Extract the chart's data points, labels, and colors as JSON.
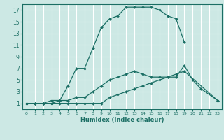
{
  "xlabel": "Humidex (Indice chaleur)",
  "bg_color": "#cce8e4",
  "grid_color": "#ffffff",
  "line_color": "#1a6e64",
  "xlim": [
    -0.5,
    23.5
  ],
  "ylim": [
    0,
    18
  ],
  "xticks": [
    0,
    1,
    2,
    3,
    4,
    5,
    6,
    7,
    8,
    9,
    10,
    11,
    12,
    13,
    14,
    15,
    16,
    17,
    18,
    19,
    20,
    21,
    22,
    23
  ],
  "yticks": [
    1,
    3,
    5,
    7,
    9,
    11,
    13,
    15,
    17
  ],
  "line1_x": [
    0,
    1,
    2,
    3,
    4,
    5,
    6,
    7,
    8,
    9,
    10,
    11,
    12,
    13,
    14,
    15,
    16,
    17,
    18,
    19
  ],
  "line1_y": [
    1,
    1,
    1,
    1.5,
    1.5,
    4,
    7,
    7,
    10.5,
    14,
    15.5,
    16,
    17.5,
    17.5,
    17.5,
    17.5,
    17,
    16,
    15.5,
    11.5
  ],
  "line2_x": [
    0,
    1,
    2,
    3,
    4,
    5,
    6,
    7,
    8,
    9,
    10,
    11,
    12,
    13,
    14,
    15,
    16,
    17,
    18,
    19,
    20,
    21,
    23
  ],
  "line2_y": [
    1,
    1,
    1,
    1,
    1.5,
    1.5,
    2,
    2,
    3,
    4,
    5,
    5.5,
    6,
    6.5,
    6,
    5.5,
    5.5,
    5.5,
    5.5,
    7.5,
    5,
    3.5,
    1.5
  ],
  "line3_x": [
    0,
    1,
    2,
    3,
    4,
    5,
    6,
    7,
    8,
    9,
    10,
    11,
    12,
    13,
    14,
    15,
    16,
    17,
    18,
    19,
    23
  ],
  "line3_y": [
    1,
    1,
    1,
    1,
    1,
    1,
    1,
    1,
    1,
    1,
    2,
    2.5,
    3,
    3.5,
    4,
    4.5,
    5,
    5.5,
    6,
    6.5,
    1.5
  ],
  "xlabel_fontsize": 6,
  "tick_fontsize_x": 4.5,
  "tick_fontsize_y": 5.5
}
